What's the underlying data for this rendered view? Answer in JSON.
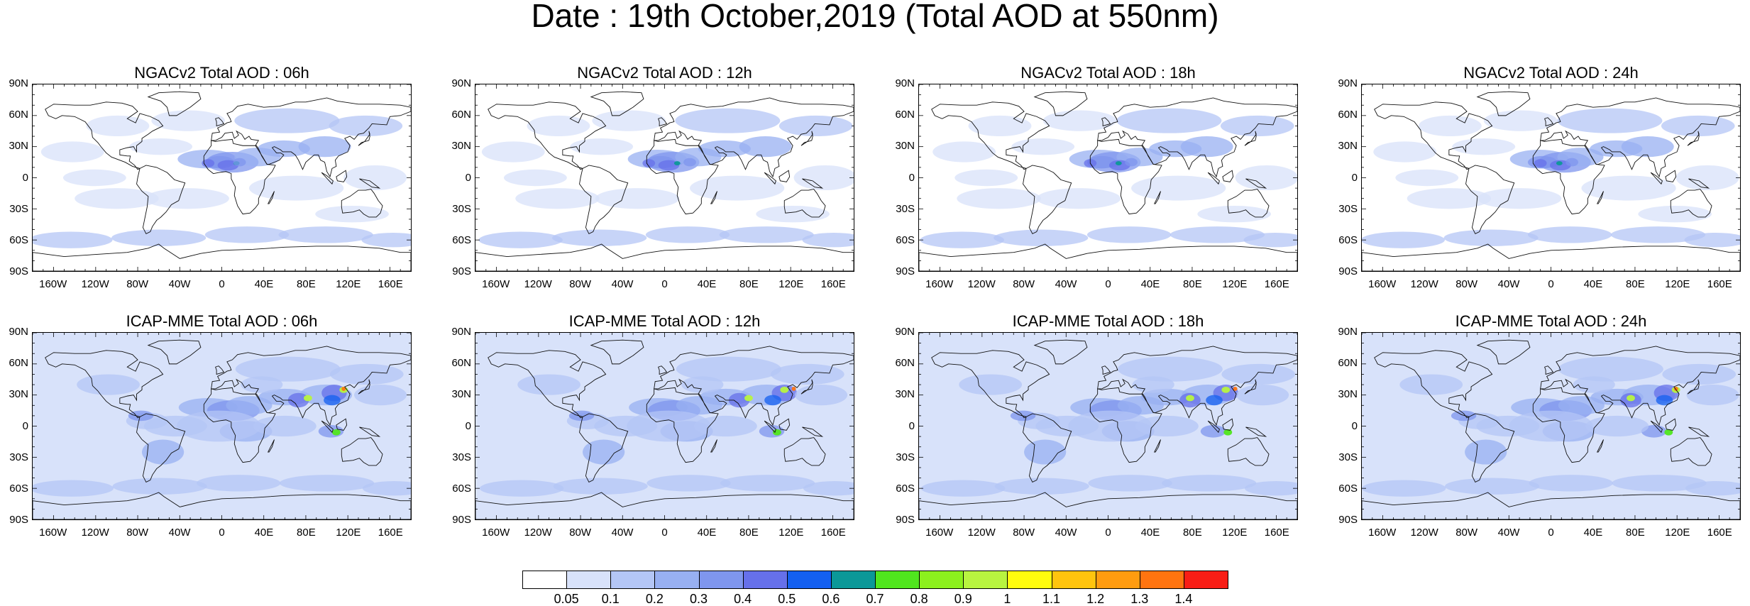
{
  "title": "Date : 19th October,2019 (Total AOD at 550nm)",
  "panels": [
    {
      "title": "NGACv2 Total AOD : 06h",
      "model": "ngac"
    },
    {
      "title": "NGACv2 Total AOD : 12h",
      "model": "ngac"
    },
    {
      "title": "NGACv2 Total AOD : 18h",
      "model": "ngac"
    },
    {
      "title": "NGACv2 Total AOD : 24h",
      "model": "ngac"
    },
    {
      "title": "ICAP-MME Total AOD : 06h",
      "model": "icap"
    },
    {
      "title": "ICAP-MME Total AOD : 12h",
      "model": "icap"
    },
    {
      "title": "ICAP-MME Total AOD : 18h",
      "model": "icap"
    },
    {
      "title": "ICAP-MME Total AOD : 24h",
      "model": "icap"
    }
  ],
  "lat_ticks": [
    "90N",
    "60N",
    "30N",
    "0",
    "30S",
    "60S",
    "90S"
  ],
  "lon_ticks": [
    "160W",
    "120W",
    "80W",
    "40W",
    "0",
    "40E",
    "80E",
    "120E",
    "160E"
  ],
  "colorbar": {
    "labels": [
      "0.05",
      "0.1",
      "0.2",
      "0.3",
      "0.4",
      "0.5",
      "0.6",
      "0.7",
      "0.8",
      "0.9",
      "1",
      "1.1",
      "1.2",
      "1.3",
      "1.4"
    ],
    "colors": [
      "#ffffff",
      "#d8e2fa",
      "#b4c6f6",
      "#98b0f2",
      "#7f96ee",
      "#6670ea",
      "#1460f0",
      "#0c9898",
      "#50e61e",
      "#8cf01e",
      "#b8f440",
      "#fffc0e",
      "#ffc40e",
      "#ff9c10",
      "#ff7410",
      "#f81e16"
    ]
  }
}
